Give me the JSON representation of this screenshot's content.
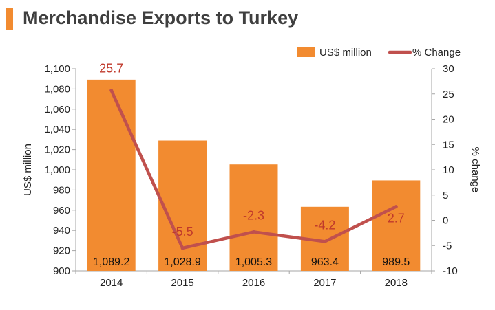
{
  "title": "Merchandise Exports to Turkey",
  "colors": {
    "accent": "#f28b30",
    "bar": "#f28b30",
    "line": "#c0504d",
    "line_label": "#c0392b",
    "text": "#222222",
    "axis": "#a6a6a6"
  },
  "chart_data": {
    "type": "bar",
    "categories": [
      "2014",
      "2015",
      "2016",
      "2017",
      "2018"
    ],
    "series": [
      {
        "name": "US$ million",
        "type": "bar",
        "axis": "left",
        "values": [
          1089.2,
          1028.9,
          1005.3,
          963.4,
          989.5
        ],
        "value_labels": [
          "1,089.2",
          "1,028.9",
          "1,005.3",
          "963.4",
          "989.5"
        ]
      },
      {
        "name": "% Change",
        "type": "line",
        "axis": "right",
        "values": [
          25.7,
          -5.5,
          -2.3,
          -4.2,
          2.7
        ],
        "value_labels": [
          "25.7",
          "-5.5",
          "-2.3",
          "-4.2",
          "2.7"
        ]
      }
    ],
    "ylabel": "US$ million",
    "y2label": "% change",
    "ylim": [
      900,
      1100
    ],
    "y2lim": [
      -10,
      30
    ],
    "yticks": [
      "1,100",
      "1,080",
      "1,060",
      "1,040",
      "1,020",
      "1,000",
      "980",
      "960",
      "940",
      "920",
      "900"
    ],
    "y2ticks": [
      "30",
      "25",
      "20",
      "15",
      "10",
      "5",
      "0",
      "-5",
      "-10"
    ],
    "legend": {
      "position": "top-right",
      "entries": [
        "US$ million",
        "% Change"
      ]
    },
    "grid": false
  }
}
